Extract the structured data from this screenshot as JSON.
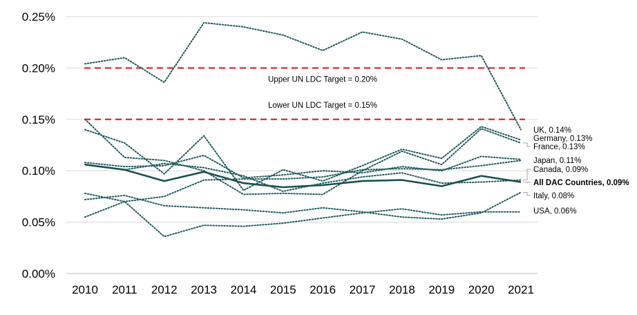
{
  "chart_data": {
    "type": "line",
    "x": [
      "2010",
      "2011",
      "2012",
      "2013",
      "2014",
      "2015",
      "2016",
      "2017",
      "2018",
      "2019",
      "2020",
      "2021"
    ],
    "yticks": [
      "0.00%",
      "0.05%",
      "0.10%",
      "0.15%",
      "0.20%",
      "0.25%"
    ],
    "ylim": [
      0,
      0.25
    ],
    "grid": true,
    "title": "",
    "xlabel": "",
    "ylabel": "",
    "series": [
      {
        "name": "UK, 0.14%",
        "values": [
          0.204,
          0.21,
          0.186,
          0.244,
          0.24,
          0.232,
          0.217,
          0.235,
          0.228,
          0.208,
          0.212,
          0.14
        ],
        "style": "dotted",
        "color": "#1f5a5c"
      },
      {
        "name": "Germany, 0.13%",
        "values": [
          0.14,
          0.127,
          0.097,
          0.134,
          0.081,
          0.101,
          0.09,
          0.105,
          0.121,
          0.112,
          0.143,
          0.13
        ],
        "style": "dotted",
        "color": "#1f5a5c"
      },
      {
        "name": "France, 0.13%",
        "values": [
          0.15,
          0.113,
          0.11,
          0.1,
          0.077,
          0.078,
          0.077,
          0.1,
          0.119,
          0.106,
          0.141,
          0.127
        ],
        "style": "dotted",
        "color": "#1f5a5c"
      },
      {
        "name": "Japan, 0.11%",
        "values": [
          0.108,
          0.104,
          0.105,
          0.115,
          0.093,
          0.096,
          0.1,
          0.098,
          0.104,
          0.1,
          0.114,
          0.111
        ],
        "style": "dotted",
        "color": "#1f5a5c"
      },
      {
        "name": "Canada, 0.09%",
        "values": [
          0.106,
          0.101,
          0.107,
          0.103,
          0.095,
          0.08,
          0.088,
          0.094,
          0.098,
          0.088,
          0.089,
          0.091
        ],
        "style": "dotted",
        "color": "#1f5a5c"
      },
      {
        "name": "All DAC Countries, 0.09%",
        "values": [
          0.106,
          0.101,
          0.09,
          0.099,
          0.088,
          0.084,
          0.086,
          0.09,
          0.091,
          0.085,
          0.095,
          0.089
        ],
        "style": "solid",
        "color": "#1a4f52",
        "bold": true
      },
      {
        "name": "Italy, 0.08%",
        "values": [
          0.072,
          0.076,
          0.066,
          0.064,
          0.062,
          0.059,
          0.064,
          0.06,
          0.055,
          0.053,
          0.059,
          0.079
        ],
        "style": "dotted",
        "color": "#1f5a5c"
      },
      {
        "name": "USA, 0.06%",
        "values": [
          0.078,
          0.07,
          0.036,
          0.047,
          0.046,
          0.049,
          0.054,
          0.059,
          0.063,
          0.057,
          0.06,
          0.06
        ],
        "style": "dotted",
        "color": "#1f5a5c"
      },
      {
        "name": "",
        "values": [
          0.055,
          0.07,
          0.075,
          0.091,
          0.092,
          0.092,
          0.094,
          0.101,
          0.102,
          0.101,
          0.105,
          0.11
        ],
        "style": "dotted",
        "color": "#1f5a5c"
      }
    ],
    "reference_lines": [
      {
        "label": "Upper UN LDC Target = 0.20%",
        "value": 0.2,
        "color": "#d9363e",
        "style": "dashed"
      },
      {
        "label": "Lower UN LDC Target = 0.15%",
        "value": 0.15,
        "color": "#d9363e",
        "style": "dashed"
      }
    ]
  }
}
